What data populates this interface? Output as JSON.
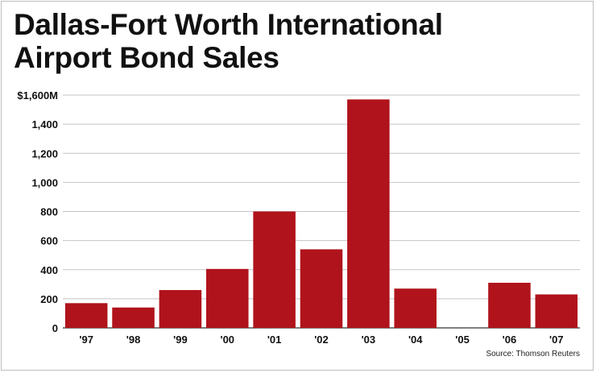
{
  "chart_data": {
    "type": "bar",
    "title": "Dallas-Fort Worth International Airport Bond Sales",
    "title_lines": [
      "Dallas-Fort Worth International",
      "Airport Bond Sales"
    ],
    "categories": [
      "'97",
      "'98",
      "'99",
      "'00",
      "'01",
      "'02",
      "'03",
      "'04",
      "'05",
      "'06",
      "'07"
    ],
    "values": [
      170,
      140,
      260,
      405,
      800,
      540,
      1570,
      270,
      0,
      310,
      230
    ],
    "ylim": [
      0,
      1600
    ],
    "yticks": [
      0,
      200,
      400,
      600,
      800,
      1000,
      1200,
      1400,
      1600
    ],
    "ytick_labels": [
      "0",
      "200",
      "400",
      "600",
      "800",
      "1,000",
      "1,200",
      "1,400",
      "$1,600M"
    ],
    "xlabel": "",
    "ylabel": "",
    "grid": true,
    "bar_color": "#b0131b",
    "source": "Source: Thomson Reuters"
  }
}
